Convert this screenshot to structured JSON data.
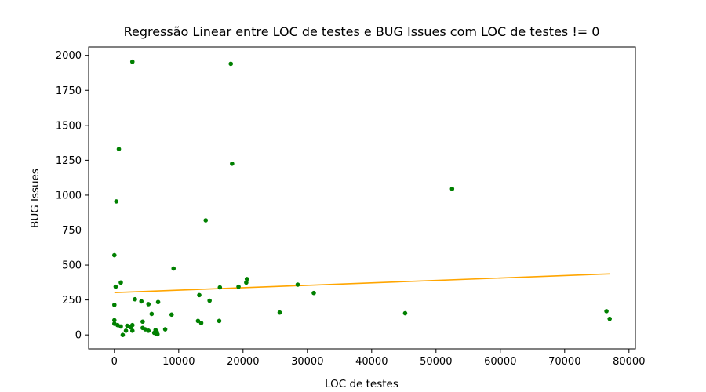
{
  "chart_data": {
    "type": "scatter",
    "title": "Regressão Linear entre LOC de testes e BUG Issues com LOC de testes != 0",
    "xlabel": "LOC de testes",
    "ylabel": "BUG Issues",
    "xlim": [
      -4000,
      81000
    ],
    "ylim": [
      -100,
      2060
    ],
    "xticks": [
      0,
      10000,
      20000,
      30000,
      40000,
      50000,
      60000,
      70000,
      80000
    ],
    "xtick_labels": [
      "0",
      "10000",
      "20000",
      "30000",
      "40000",
      "50000",
      "60000",
      "70000",
      "80000"
    ],
    "yticks": [
      0,
      250,
      500,
      750,
      1000,
      1250,
      1500,
      1750,
      2000
    ],
    "ytick_labels": [
      "0",
      "250",
      "500",
      "750",
      "1000",
      "1250",
      "1500",
      "1750",
      "2000"
    ],
    "grid": false,
    "colors": {
      "points": "#008000",
      "regression": "#ffa500"
    },
    "series": [
      {
        "points": [
          [
            2800,
            1955
          ],
          [
            18100,
            1940
          ],
          [
            700,
            1330
          ],
          [
            18300,
            1225
          ],
          [
            52500,
            1045
          ],
          [
            300,
            955
          ],
          [
            14200,
            820
          ],
          [
            0,
            570
          ],
          [
            9200,
            475
          ],
          [
            20600,
            400
          ],
          [
            20500,
            375
          ],
          [
            1000,
            375
          ],
          [
            28500,
            360
          ],
          [
            200,
            345
          ],
          [
            19300,
            345
          ],
          [
            16400,
            340
          ],
          [
            31000,
            300
          ],
          [
            13200,
            285
          ],
          [
            3200,
            255
          ],
          [
            14800,
            245
          ],
          [
            4200,
            240
          ],
          [
            6800,
            235
          ],
          [
            5300,
            220
          ],
          [
            0,
            215
          ],
          [
            25700,
            160
          ],
          [
            45200,
            155
          ],
          [
            5800,
            150
          ],
          [
            8900,
            145
          ],
          [
            76500,
            170
          ],
          [
            77000,
            115
          ],
          [
            0,
            105
          ],
          [
            13000,
            100
          ],
          [
            16300,
            100
          ],
          [
            4400,
            95
          ],
          [
            13500,
            85
          ],
          [
            0,
            80
          ],
          [
            500,
            70
          ],
          [
            2800,
            70
          ],
          [
            1000,
            60
          ],
          [
            2000,
            65
          ],
          [
            2500,
            55
          ],
          [
            4400,
            50
          ],
          [
            4800,
            40
          ],
          [
            5300,
            30
          ],
          [
            7900,
            40
          ],
          [
            6400,
            35
          ],
          [
            2800,
            30
          ],
          [
            1800,
            30
          ],
          [
            6200,
            15
          ],
          [
            6600,
            20
          ],
          [
            6500,
            10
          ],
          [
            1300,
            0
          ],
          [
            6700,
            5
          ]
        ]
      },
      {
        "type": "line",
        "points": [
          [
            0,
            303
          ],
          [
            77000,
            437
          ]
        ]
      }
    ]
  }
}
